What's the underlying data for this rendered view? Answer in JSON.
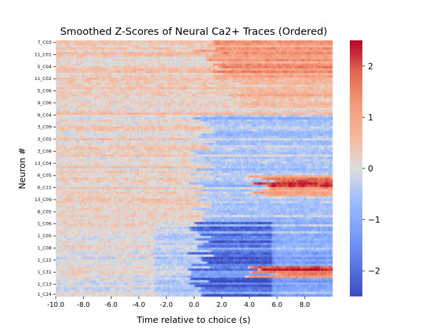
{
  "chart_data": {
    "type": "heatmap",
    "title": "Smoothed Z-Scores of Neural Ca2+ Traces (Ordered)",
    "xlabel": "Time relative to choice (s)",
    "ylabel": "Neuron #",
    "xlim": [
      -10,
      10
    ],
    "x_ticks": [
      -10,
      -8,
      -6,
      -4,
      -2,
      0,
      2,
      4,
      6,
      8
    ],
    "x_tick_labels": [
      "-10.0",
      "-8.0",
      "-6.0",
      "-4.0",
      "-2.0",
      "0.0",
      "2.0",
      "4.0",
      "6.0",
      "8.0"
    ],
    "y_tick_labels": [
      "7_C03",
      "11_C01",
      "5_C04",
      "11_C02",
      "5_C06",
      "9_C06",
      "9_C04",
      "3_C09",
      "3_C02",
      "3_C08",
      "13_C04",
      "6_C05",
      "6_C11",
      "13_C09",
      "8_C05",
      "1_C06",
      "1_C05",
      "1_C08",
      "1_C22",
      "1_C31",
      "1_C13",
      "1_C24"
    ],
    "n_neurons": 110,
    "n_timebins": 200,
    "colormap": "coolwarm",
    "colors": {
      "low": "#3b4cc0",
      "mid": "#dddddd",
      "high": "#b40426"
    },
    "colorbar": {
      "vmin": -2.5,
      "vmax": 2.5,
      "ticks": [
        -2,
        -1,
        0,
        1,
        2
      ],
      "tick_labels": [
        "−2",
        "−1",
        "0",
        "1",
        "2"
      ]
    },
    "grid": false,
    "description_of_pattern": [
      {
        "neurons": "top group (7_C03 - 9_C04)",
        "pre_choice": 0.3,
        "post_choice": 1.8
      },
      {
        "neurons": "middle group (3_C09 - 8_C05)",
        "pre_choice": 0.2,
        "post_choice": -0.6
      },
      {
        "neurons": "middle subset (6_C11 - 13_C09)",
        "late_post_choice": 2.0
      },
      {
        "neurons": "bottom group (1_C06 - 1_C24)",
        "pre_choice": 0.1,
        "post_choice": -1.8
      },
      {
        "neurons": "bottom subset (1_C13)",
        "late_post_choice": 1.3
      }
    ]
  }
}
